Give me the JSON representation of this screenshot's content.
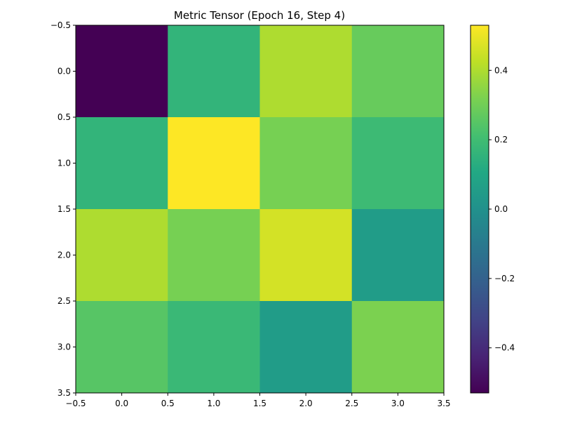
{
  "chart_data": {
    "type": "heatmap",
    "title": "Metric Tensor (Epoch 16, Step 4)",
    "xlabel": "",
    "ylabel": "",
    "rows": 4,
    "cols": 4,
    "values": [
      [
        -0.53,
        0.16,
        0.4,
        0.28
      ],
      [
        0.16,
        0.53,
        0.31,
        0.19
      ],
      [
        0.4,
        0.31,
        0.46,
        0.05
      ],
      [
        0.25,
        0.18,
        0.05,
        0.32
      ]
    ],
    "xlim": [
      -0.5,
      3.5
    ],
    "ylim": [
      3.5,
      -0.5
    ],
    "x_ticks": [
      "−0.5",
      "0.0",
      "0.5",
      "1.0",
      "1.5",
      "2.0",
      "2.5",
      "3.0",
      "3.5"
    ],
    "y_ticks": [
      "−0.5",
      "0.0",
      "0.5",
      "1.0",
      "1.5",
      "2.0",
      "2.5",
      "3.0",
      "3.5"
    ],
    "colormap": "viridis",
    "colorbar": {
      "vmin": -0.53,
      "vmax": 0.53,
      "ticks": [
        {
          "value": -0.4,
          "label": "−0.4"
        },
        {
          "value": -0.2,
          "label": "−0.2"
        },
        {
          "value": 0.0,
          "label": "0.0"
        },
        {
          "value": 0.2,
          "label": "0.2"
        },
        {
          "value": 0.4,
          "label": "0.4"
        }
      ]
    },
    "grid": false
  }
}
